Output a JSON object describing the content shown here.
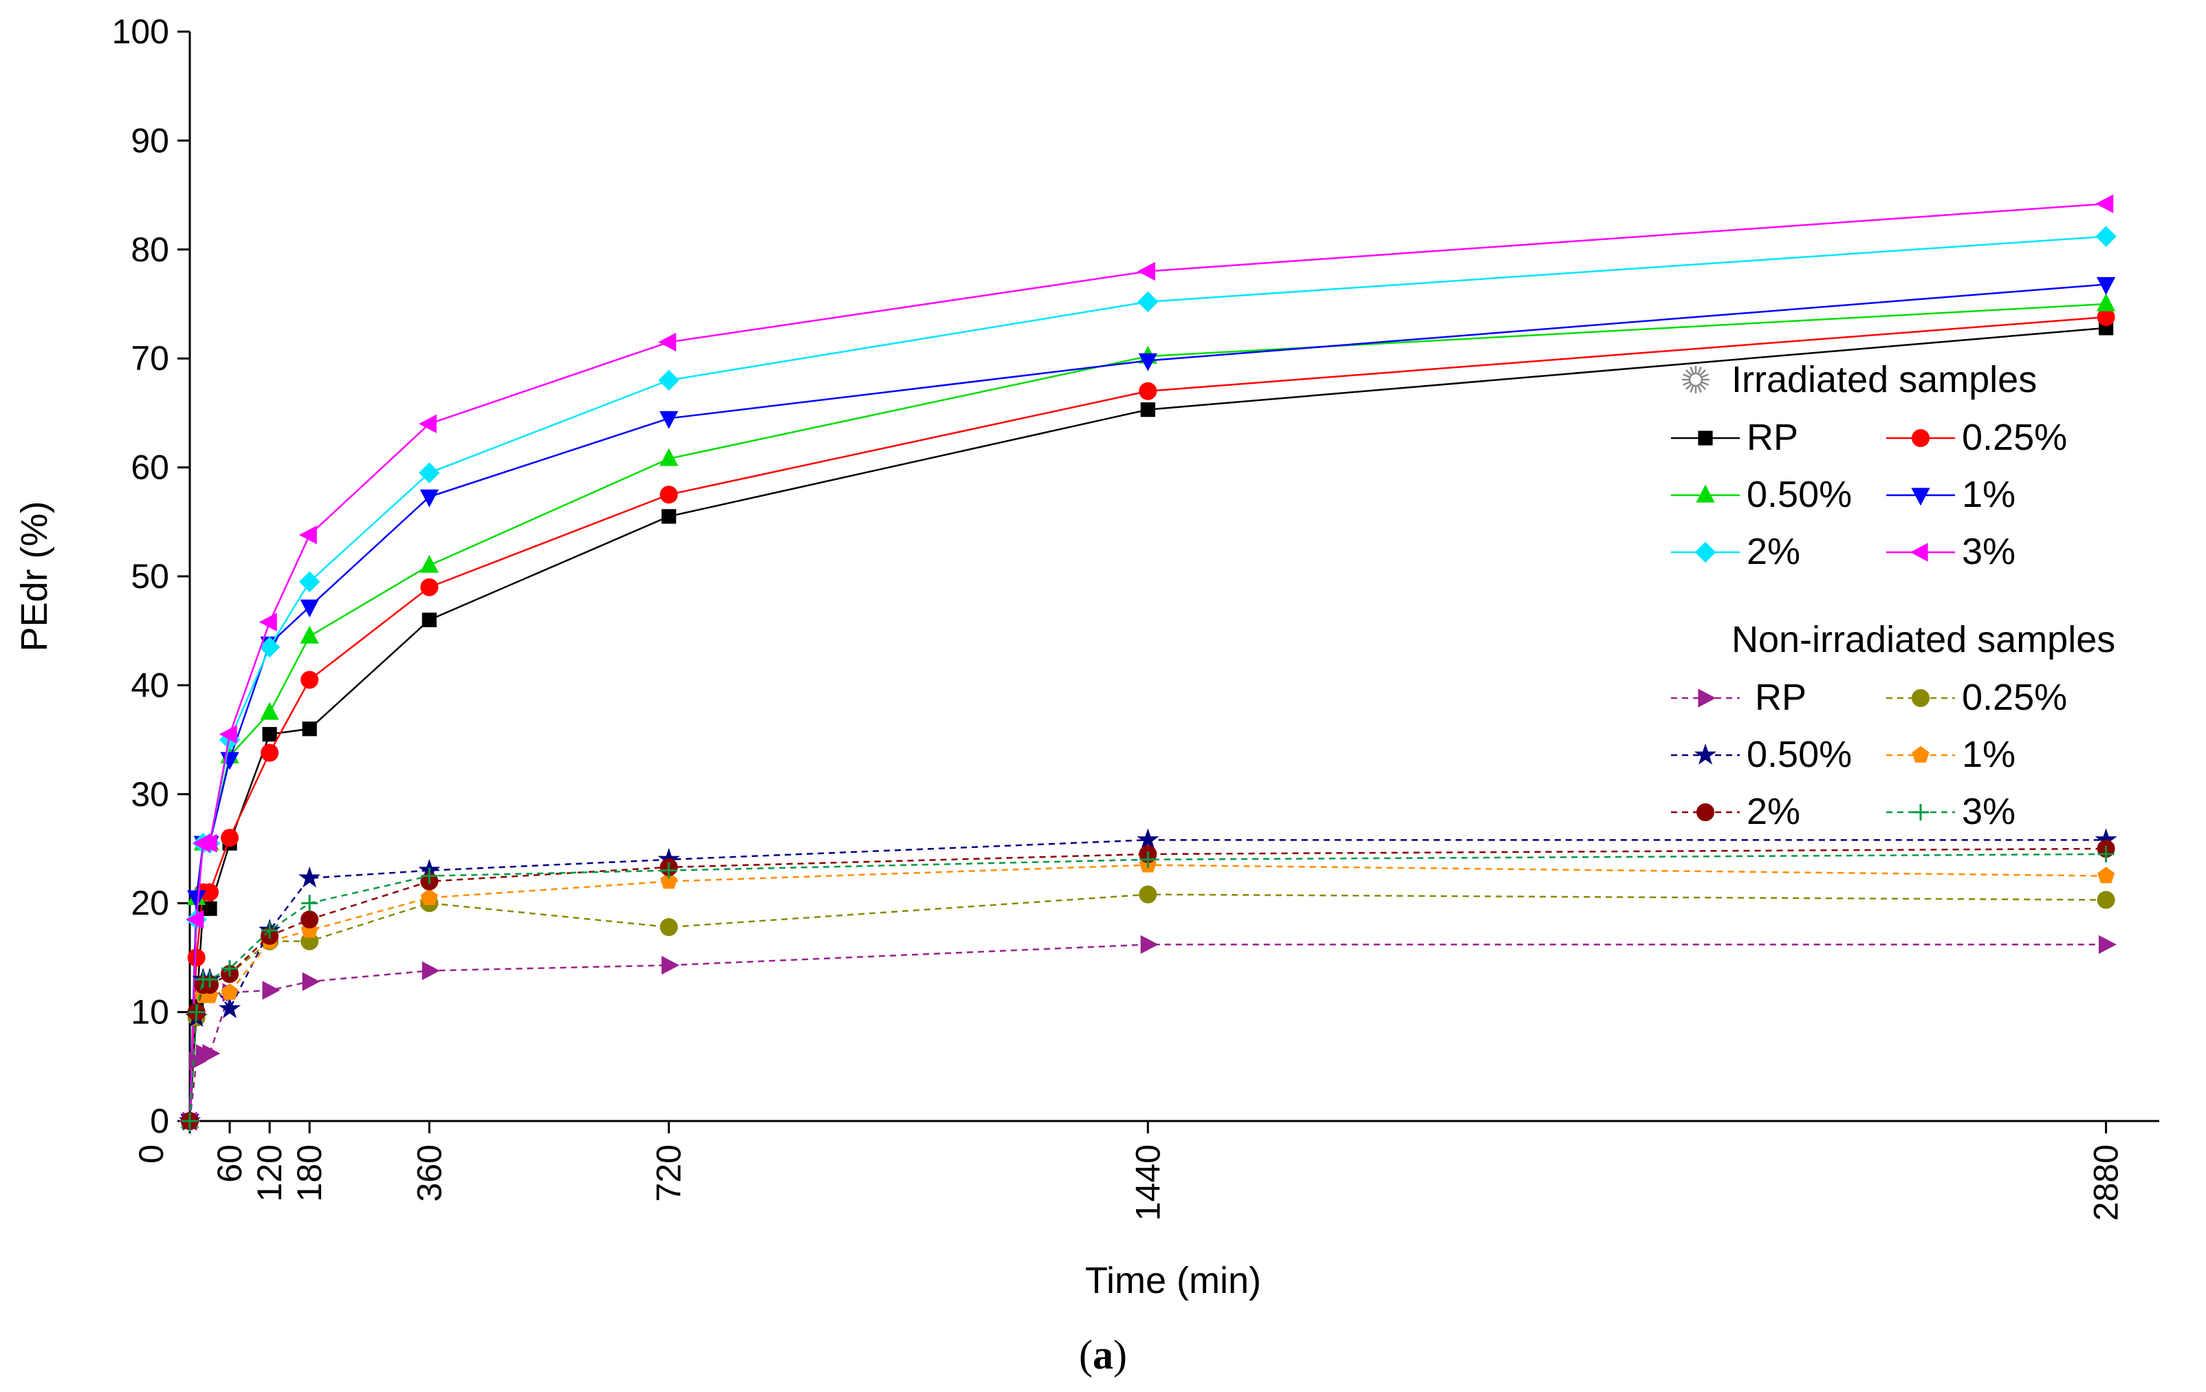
{
  "chart_data": {
    "type": "line",
    "xlabel": "Time (min)",
    "ylabel": "PEdr (%)",
    "caption_open": "(",
    "caption_letter": "a",
    "caption_close": ")",
    "xlim": [
      0,
      2960
    ],
    "ylim": [
      0,
      100
    ],
    "x_ticks": [
      0,
      60,
      120,
      180,
      360,
      720,
      1440,
      2880
    ],
    "y_ticks": [
      0,
      10,
      20,
      30,
      40,
      50,
      60,
      70,
      80,
      90,
      100
    ],
    "x": [
      0,
      10,
      20,
      30,
      60,
      120,
      180,
      360,
      720,
      1440,
      2880
    ],
    "groups": [
      {
        "title": "Irradiated samples",
        "icon": "sun-icon",
        "line_style": "solid",
        "series": [
          {
            "name": "RP",
            "color": "#000000",
            "marker": "square",
            "values": [
              0,
              10.5,
              19.5,
              19.5,
              25.5,
              35.5,
              36,
              46,
              55.5,
              65.3,
              72.8
            ]
          },
          {
            "name": "0.25%",
            "color": "#ff0000",
            "marker": "circle",
            "values": [
              0,
              15,
              21,
              21,
              26,
              33.8,
              40.5,
              49,
              57.5,
              67,
              73.8
            ]
          },
          {
            "name": "0.50%",
            "color": "#00dd00",
            "marker": "triangle-up",
            "values": [
              0,
              20.5,
              25.5,
              25.5,
              33.5,
              37.5,
              44.5,
              51,
              60.8,
              70.2,
              75
            ]
          },
          {
            "name": "1%",
            "color": "#0000ff",
            "marker": "triangle-down",
            "values": [
              0,
              20.5,
              25.5,
              25.5,
              33.2,
              43.8,
              47.2,
              57.3,
              64.5,
              69.8,
              76.8
            ]
          },
          {
            "name": "2%",
            "color": "#00e5ff",
            "marker": "diamond",
            "values": [
              0,
              18.5,
              25.5,
              25.5,
              35,
              43.5,
              49.5,
              59.5,
              68,
              75.2,
              81.2
            ]
          },
          {
            "name": "3%",
            "color": "#ff00ff",
            "marker": "triangle-left",
            "values": [
              0,
              18.5,
              25.5,
              25.5,
              35.5,
              45.8,
              53.8,
              64,
              71.5,
              78,
              84.2
            ]
          }
        ]
      },
      {
        "title": "Non-irradiated samples",
        "icon": "moon-icon",
        "line_style": "dashed",
        "series": [
          {
            "name": "RP",
            "color": "#9b1f91",
            "marker": "triangle-right",
            "values": [
              0,
              5.5,
              6.2,
              6.2,
              11.8,
              12,
              12.8,
              13.8,
              14.3,
              16.2,
              16.2
            ]
          },
          {
            "name": "0.25%",
            "color": "#8a8a00",
            "marker": "circle",
            "values": [
              0,
              9.5,
              12.5,
              12.5,
              13.5,
              16.5,
              16.5,
              20,
              17.8,
              20.8,
              20.3
            ]
          },
          {
            "name": "0.50%",
            "color": "#000080",
            "marker": "star",
            "values": [
              0,
              9.5,
              13,
              13,
              10.3,
              17.5,
              22.3,
              23,
              24,
              25.8,
              25.8
            ]
          },
          {
            "name": "1%",
            "color": "#ff8c00",
            "marker": "pentagon",
            "values": [
              0,
              10,
              11.5,
              11.5,
              11.8,
              16.5,
              17.5,
              20.5,
              22,
              23.5,
              22.5
            ]
          },
          {
            "name": "2%",
            "color": "#8b0000",
            "marker": "circle",
            "values": [
              0,
              10,
              12.5,
              12.5,
              13.5,
              17,
              18.5,
              22,
              23.3,
              24.5,
              25
            ]
          },
          {
            "name": "3%",
            "color": "#009944",
            "marker": "plus",
            "values": [
              0,
              10,
              13,
              13,
              14,
              17.5,
              20,
              22.5,
              23,
              24,
              24.5
            ]
          }
        ]
      }
    ]
  }
}
